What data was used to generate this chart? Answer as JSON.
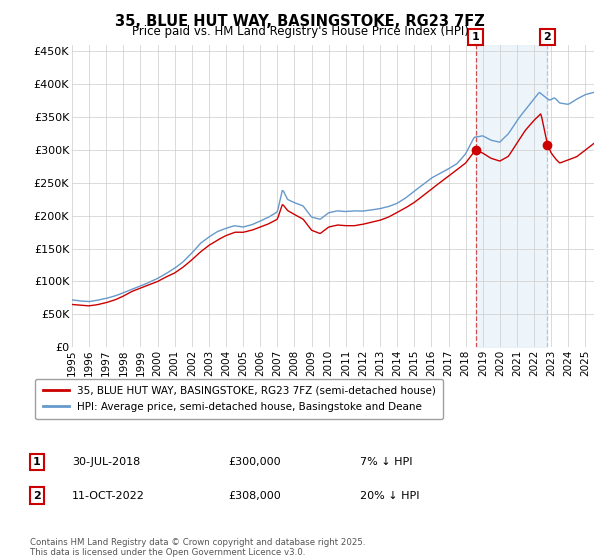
{
  "title": "35, BLUE HUT WAY, BASINGSTOKE, RG23 7FZ",
  "subtitle": "Price paid vs. HM Land Registry's House Price Index (HPI)",
  "ytick_labels": [
    "£0",
    "£50K",
    "£100K",
    "£150K",
    "£200K",
    "£250K",
    "£300K",
    "£350K",
    "£400K",
    "£450K"
  ],
  "yticks": [
    0,
    50000,
    100000,
    150000,
    200000,
    250000,
    300000,
    350000,
    400000,
    450000
  ],
  "ylim": [
    0,
    460000
  ],
  "xlim_start": 1995,
  "xlim_end": 2025.5,
  "legend_entry1": "35, BLUE HUT WAY, BASINGSTOKE, RG23 7FZ (semi-detached house)",
  "legend_entry2": "HPI: Average price, semi-detached house, Basingstoke and Deane",
  "annotation1_label": "1",
  "annotation1_date": "30-JUL-2018",
  "annotation1_price": "£300,000",
  "annotation1_hpi": "7% ↓ HPI",
  "annotation2_label": "2",
  "annotation2_date": "11-OCT-2022",
  "annotation2_price": "£308,000",
  "annotation2_hpi": "20% ↓ HPI",
  "footer": "Contains HM Land Registry data © Crown copyright and database right 2025.\nThis data is licensed under the Open Government Licence v3.0.",
  "line1_color": "#cc0000",
  "line2_color": "#6699cc",
  "line2_fill_color": "#d4e6f5",
  "background_color": "#ffffff",
  "grid_color": "#cccccc",
  "sale1_vline_color": "#cc3333",
  "sale2_vline_color": "#aabbdd",
  "sale1_x": 2018.58,
  "sale1_y": 300000,
  "sale2_x": 2022.78,
  "sale2_y": 308000,
  "hpi_anchors": [
    [
      1995.0,
      72000
    ],
    [
      1995.5,
      70000
    ],
    [
      1996.0,
      69000
    ],
    [
      1996.5,
      71000
    ],
    [
      1997.0,
      74000
    ],
    [
      1997.5,
      78000
    ],
    [
      1998.0,
      83000
    ],
    [
      1998.5,
      88000
    ],
    [
      1999.0,
      93000
    ],
    [
      1999.5,
      99000
    ],
    [
      2000.0,
      105000
    ],
    [
      2000.5,
      112000
    ],
    [
      2001.0,
      120000
    ],
    [
      2001.5,
      130000
    ],
    [
      2002.0,
      143000
    ],
    [
      2002.5,
      158000
    ],
    [
      2003.0,
      168000
    ],
    [
      2003.5,
      176000
    ],
    [
      2004.0,
      181000
    ],
    [
      2004.5,
      185000
    ],
    [
      2005.0,
      183000
    ],
    [
      2005.5,
      186000
    ],
    [
      2006.0,
      192000
    ],
    [
      2006.5,
      198000
    ],
    [
      2007.0,
      206000
    ],
    [
      2007.3,
      240000
    ],
    [
      2007.6,
      225000
    ],
    [
      2008.0,
      220000
    ],
    [
      2008.5,
      215000
    ],
    [
      2009.0,
      198000
    ],
    [
      2009.5,
      195000
    ],
    [
      2010.0,
      205000
    ],
    [
      2010.5,
      208000
    ],
    [
      2011.0,
      207000
    ],
    [
      2011.5,
      208000
    ],
    [
      2012.0,
      208000
    ],
    [
      2012.5,
      210000
    ],
    [
      2013.0,
      212000
    ],
    [
      2013.5,
      215000
    ],
    [
      2014.0,
      220000
    ],
    [
      2014.5,
      228000
    ],
    [
      2015.0,
      238000
    ],
    [
      2015.5,
      248000
    ],
    [
      2016.0,
      258000
    ],
    [
      2016.5,
      265000
    ],
    [
      2017.0,
      272000
    ],
    [
      2017.5,
      280000
    ],
    [
      2018.0,
      295000
    ],
    [
      2018.5,
      320000
    ],
    [
      2019.0,
      322000
    ],
    [
      2019.5,
      315000
    ],
    [
      2020.0,
      312000
    ],
    [
      2020.5,
      325000
    ],
    [
      2021.0,
      345000
    ],
    [
      2021.5,
      362000
    ],
    [
      2022.0,
      378000
    ],
    [
      2022.3,
      388000
    ],
    [
      2022.6,
      382000
    ],
    [
      2022.9,
      376000
    ],
    [
      2023.2,
      380000
    ],
    [
      2023.5,
      372000
    ],
    [
      2024.0,
      370000
    ],
    [
      2024.5,
      378000
    ],
    [
      2025.0,
      385000
    ],
    [
      2025.5,
      388000
    ]
  ],
  "prop_anchors": [
    [
      1995.0,
      65000
    ],
    [
      1995.5,
      64000
    ],
    [
      1996.0,
      63000
    ],
    [
      1996.5,
      65000
    ],
    [
      1997.0,
      68000
    ],
    [
      1997.5,
      72000
    ],
    [
      1998.0,
      78000
    ],
    [
      1998.5,
      85000
    ],
    [
      1999.0,
      90000
    ],
    [
      1999.5,
      95000
    ],
    [
      2000.0,
      100000
    ],
    [
      2000.5,
      107000
    ],
    [
      2001.0,
      113000
    ],
    [
      2001.5,
      122000
    ],
    [
      2002.0,
      133000
    ],
    [
      2002.5,
      145000
    ],
    [
      2003.0,
      155000
    ],
    [
      2003.5,
      163000
    ],
    [
      2004.0,
      170000
    ],
    [
      2004.5,
      175000
    ],
    [
      2005.0,
      175000
    ],
    [
      2005.5,
      178000
    ],
    [
      2006.0,
      183000
    ],
    [
      2006.5,
      188000
    ],
    [
      2007.0,
      195000
    ],
    [
      2007.3,
      218000
    ],
    [
      2007.6,
      208000
    ],
    [
      2008.0,
      202000
    ],
    [
      2008.5,
      195000
    ],
    [
      2009.0,
      178000
    ],
    [
      2009.5,
      173000
    ],
    [
      2010.0,
      183000
    ],
    [
      2010.5,
      186000
    ],
    [
      2011.0,
      185000
    ],
    [
      2011.5,
      185000
    ],
    [
      2012.0,
      187000
    ],
    [
      2012.5,
      190000
    ],
    [
      2013.0,
      193000
    ],
    [
      2013.5,
      198000
    ],
    [
      2014.0,
      205000
    ],
    [
      2014.5,
      212000
    ],
    [
      2015.0,
      220000
    ],
    [
      2015.5,
      230000
    ],
    [
      2016.0,
      240000
    ],
    [
      2016.5,
      250000
    ],
    [
      2017.0,
      260000
    ],
    [
      2017.5,
      270000
    ],
    [
      2018.0,
      280000
    ],
    [
      2018.58,
      300000
    ],
    [
      2019.0,
      295000
    ],
    [
      2019.3,
      290000
    ],
    [
      2019.5,
      287000
    ],
    [
      2020.0,
      283000
    ],
    [
      2020.5,
      290000
    ],
    [
      2021.0,
      310000
    ],
    [
      2021.5,
      330000
    ],
    [
      2022.0,
      345000
    ],
    [
      2022.4,
      355000
    ],
    [
      2022.78,
      308000
    ],
    [
      2023.0,
      295000
    ],
    [
      2023.3,
      285000
    ],
    [
      2023.5,
      280000
    ],
    [
      2024.0,
      285000
    ],
    [
      2024.5,
      290000
    ],
    [
      2025.0,
      300000
    ],
    [
      2025.5,
      310000
    ]
  ]
}
